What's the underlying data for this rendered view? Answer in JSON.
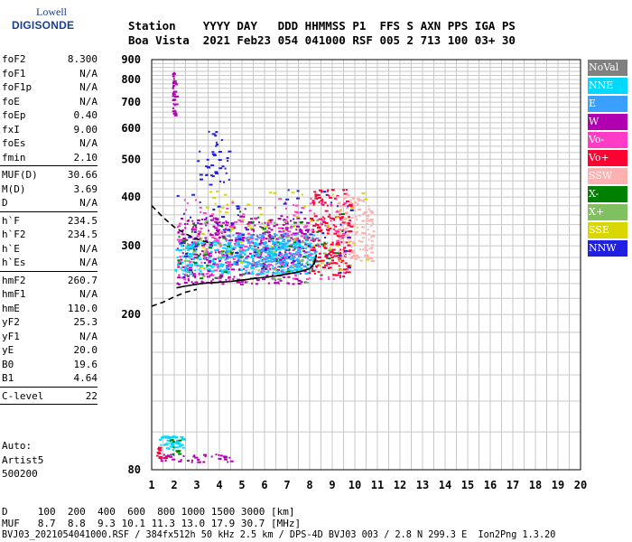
{
  "logo": {
    "top": "Lowell",
    "main": "DIGISONDE"
  },
  "header": {
    "line1": "Station    YYYY DAY   DDD HHMMSS P1  FFS S AXN PPS IGA PS",
    "line2": "Boa Vista  2021 Feb23 054 041000 RSF 005 2 713 100 03+ 30"
  },
  "params": {
    "group1": [
      {
        "name": "foF2",
        "value": "8.300"
      },
      {
        "name": "foF1",
        "value": "N/A"
      },
      {
        "name": "foF1p",
        "value": "N/A"
      },
      {
        "name": "foE",
        "value": "N/A"
      },
      {
        "name": "foEp",
        "value": "0.40"
      },
      {
        "name": "fxI",
        "value": "9.00"
      },
      {
        "name": "foEs",
        "value": "N/A"
      },
      {
        "name": "fmin",
        "value": "2.10"
      }
    ],
    "group2": [
      {
        "name": "MUF(D)",
        "value": "30.66"
      },
      {
        "name": "M(D)",
        "value": "3.69"
      },
      {
        "name": "D",
        "value": "N/A"
      }
    ],
    "group3": [
      {
        "name": "h`F",
        "value": "234.5"
      },
      {
        "name": "h`F2",
        "value": "234.5"
      },
      {
        "name": "h`E",
        "value": "N/A"
      },
      {
        "name": "h`Es",
        "value": "N/A"
      }
    ],
    "group4": [
      {
        "name": "hmF2",
        "value": "260.7"
      },
      {
        "name": "hmF1",
        "value": "N/A"
      },
      {
        "name": "hmE",
        "value": "110.0"
      },
      {
        "name": "yF2",
        "value": "25.3"
      },
      {
        "name": "yF1",
        "value": "N/A"
      },
      {
        "name": "yE",
        "value": "20.0"
      },
      {
        "name": "B0",
        "value": "19.6"
      },
      {
        "name": "B1",
        "value": "4.64"
      }
    ],
    "group5": [
      {
        "name": "C-level",
        "value": "22"
      }
    ]
  },
  "auto": {
    "line1": "Auto:",
    "line2": "Artist5",
    "line3": "500200"
  },
  "legend": [
    {
      "label": "NoVal",
      "color": "#808080"
    },
    {
      "label": "NNE",
      "color": "#00d8ff"
    },
    {
      "label": "E",
      "color": "#3aa0ff"
    },
    {
      "label": "W",
      "color": "#b000b0"
    },
    {
      "label": "Vo-",
      "color": "#ff3cc8"
    },
    {
      "label": "Vo+",
      "color": "#ff0033"
    },
    {
      "label": "SSW",
      "color": "#ffb0b0"
    },
    {
      "label": "X-",
      "color": "#008000"
    },
    {
      "label": "X+",
      "color": "#80c060"
    },
    {
      "label": "SSE",
      "color": "#d8d800"
    },
    {
      "label": "NNW",
      "color": "#2020e0"
    }
  ],
  "bottom": {
    "line1": "D     100  200  400  600  800 1000 1500 3000 [km]",
    "line2": "MUF   8.7  8.8  9.3 10.1 11.3 13.0 17.9 30.7 [MHz]",
    "line3": "BVJ03_2021054041000.RSF / 384fx512h 50 kHz 2.5 km / DPS-4D BVJ03 003 / 2.8 N 299.3 E  Ion2Png 1.3.20"
  },
  "chart_data": {
    "type": "scatter",
    "xlabel": "",
    "ylabel": "",
    "xlim": [
      1,
      20
    ],
    "ylim": [
      80,
      900
    ],
    "x_ticks": [
      1,
      2,
      3,
      4,
      5,
      6,
      7,
      8,
      9,
      10,
      11,
      12,
      13,
      14,
      15,
      16,
      17,
      18,
      19,
      20
    ],
    "y_ticks": [
      80,
      200,
      300,
      400,
      500,
      600,
      700,
      800,
      900
    ],
    "grid": true,
    "y_scale": "log",
    "trace_curve": {
      "name": "",
      "x": [
        2.1,
        2.4,
        2.8,
        3.2,
        3.6,
        4.0,
        4.5,
        5.0,
        5.5,
        6.0,
        6.5,
        7.0,
        7.5,
        8.0,
        8.2,
        8.3
      ],
      "y": [
        234,
        236,
        238,
        240,
        241,
        242,
        243,
        245,
        247,
        249,
        251,
        254,
        257,
        262,
        270,
        285
      ]
    },
    "profile_upper": {
      "x": [
        1.0,
        1.5,
        2.0,
        2.5,
        3.0,
        3.5
      ],
      "y": [
        380,
        355,
        335,
        322,
        312,
        306
      ]
    },
    "profile_lower": {
      "x": [
        1.0,
        1.5,
        2.0,
        2.5,
        3.0
      ],
      "y": [
        210,
        215,
        222,
        228,
        232
      ]
    },
    "echo_regions": [
      {
        "color": "#b000b0",
        "x": [
          2.1,
          7.9
        ],
        "y": [
          240,
          360
        ],
        "n": 520
      },
      {
        "color": "#00d8ff",
        "x": [
          2.0,
          8.2
        ],
        "y": [
          255,
          310
        ],
        "n": 360
      },
      {
        "color": "#3aa0ff",
        "x": [
          4.2,
          8.3
        ],
        "y": [
          265,
          325
        ],
        "n": 200
      },
      {
        "color": "#ff0033",
        "x": [
          8.0,
          9.8
        ],
        "y": [
          250,
          420
        ],
        "n": 200
      },
      {
        "color": "#ff3cc8",
        "x": [
          2.1,
          9.5
        ],
        "y": [
          245,
          400
        ],
        "n": 160
      },
      {
        "color": "#ffb0b0",
        "x": [
          9.2,
          10.8
        ],
        "y": [
          275,
          410
        ],
        "n": 130
      },
      {
        "color": "#d8d800",
        "x": [
          3.0,
          10.5
        ],
        "y": [
          260,
          420
        ],
        "n": 70
      },
      {
        "color": "#008000",
        "x": [
          2.1,
          9.5
        ],
        "y": [
          245,
          380
        ],
        "n": 60
      },
      {
        "color": "#80c060",
        "x": [
          2.3,
          9.0
        ],
        "y": [
          240,
          360
        ],
        "n": 50
      },
      {
        "color": "#2020e0",
        "x": [
          2.1,
          9.8
        ],
        "y": [
          250,
          420
        ],
        "n": 70
      },
      {
        "color": "#b000b0",
        "x": [
          1.9,
          2.05
        ],
        "y": [
          650,
          840
        ],
        "n": 40
      },
      {
        "color": "#2020e0",
        "x": [
          3.0,
          4.4
        ],
        "y": [
          430,
          600
        ],
        "n": 40
      },
      {
        "color": "#00d8ff",
        "x": [
          1.3,
          2.4
        ],
        "y": [
          90,
          98
        ],
        "n": 50
      },
      {
        "color": "#b000b0",
        "x": [
          1.3,
          4.5
        ],
        "y": [
          84,
          88
        ],
        "n": 40
      },
      {
        "color": "#ff0033",
        "x": [
          1.2,
          1.6
        ],
        "y": [
          86,
          92
        ],
        "n": 12
      },
      {
        "color": "#008000",
        "x": [
          1.8,
          2.2
        ],
        "y": [
          88,
          96
        ],
        "n": 10
      }
    ]
  }
}
